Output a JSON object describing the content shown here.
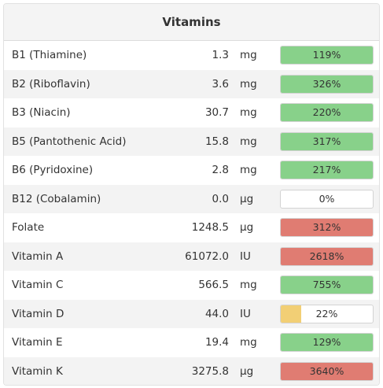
{
  "panel": {
    "title": "Vitamins"
  },
  "colors": {
    "good": "#88d18a",
    "high": "#e07c72",
    "low": "#f2cf75"
  },
  "rows": [
    {
      "name": "B1 (Thiamine)",
      "amount": "1.3",
      "unit": "mg",
      "percent": "119%",
      "fill_fraction": 1.0,
      "status": "good"
    },
    {
      "name": "B2 (Riboflavin)",
      "amount": "3.6",
      "unit": "mg",
      "percent": "326%",
      "fill_fraction": 1.0,
      "status": "good"
    },
    {
      "name": "B3 (Niacin)",
      "amount": "30.7",
      "unit": "mg",
      "percent": "220%",
      "fill_fraction": 1.0,
      "status": "good"
    },
    {
      "name": "B5 (Pantothenic Acid)",
      "amount": "15.8",
      "unit": "mg",
      "percent": "317%",
      "fill_fraction": 1.0,
      "status": "good"
    },
    {
      "name": "B6 (Pyridoxine)",
      "amount": "2.8",
      "unit": "mg",
      "percent": "217%",
      "fill_fraction": 1.0,
      "status": "good"
    },
    {
      "name": "B12 (Cobalamin)",
      "amount": "0.0",
      "unit": "µg",
      "percent": "0%",
      "fill_fraction": 0.0,
      "status": "low"
    },
    {
      "name": "Folate",
      "amount": "1248.5",
      "unit": "µg",
      "percent": "312%",
      "fill_fraction": 1.0,
      "status": "high"
    },
    {
      "name": "Vitamin A",
      "amount": "61072.0",
      "unit": "IU",
      "percent": "2618%",
      "fill_fraction": 1.0,
      "status": "high"
    },
    {
      "name": "Vitamin C",
      "amount": "566.5",
      "unit": "mg",
      "percent": "755%",
      "fill_fraction": 1.0,
      "status": "good"
    },
    {
      "name": "Vitamin D",
      "amount": "44.0",
      "unit": "IU",
      "percent": "22%",
      "fill_fraction": 0.22,
      "status": "low"
    },
    {
      "name": "Vitamin E",
      "amount": "19.4",
      "unit": "mg",
      "percent": "129%",
      "fill_fraction": 1.0,
      "status": "good"
    },
    {
      "name": "Vitamin K",
      "amount": "3275.8",
      "unit": "µg",
      "percent": "3640%",
      "fill_fraction": 1.0,
      "status": "high"
    }
  ]
}
